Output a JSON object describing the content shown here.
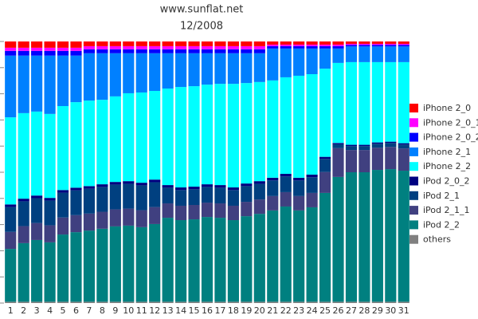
{
  "chart_data": {
    "type": "stacked_bar",
    "title": "www.sunflat.net",
    "subtitle": "12/2008",
    "categories": [
      "1",
      "2",
      "3",
      "4",
      "5",
      "6",
      "7",
      "8",
      "9",
      "10",
      "11",
      "12",
      "13",
      "14",
      "15",
      "16",
      "17",
      "18",
      "19",
      "20",
      "21",
      "22",
      "23",
      "24",
      "25",
      "26",
      "27",
      "28",
      "29",
      "30",
      "31"
    ],
    "ylim": [
      0,
      100
    ],
    "yticks": [
      0,
      10,
      20,
      30,
      40,
      50,
      60,
      70,
      80,
      90,
      100
    ],
    "series": [
      {
        "name": "iPhone 2_0",
        "color": "#ff0000",
        "values": [
          2.4,
          2.4,
          2.4,
          2.4,
          2.4,
          2.4,
          1.8,
          1.8,
          1.8,
          1.8,
          1.8,
          1.8,
          1.8,
          1.8,
          1.8,
          1.8,
          1.8,
          1.8,
          1.8,
          1.8,
          1.2,
          1.2,
          1.2,
          1.2,
          1.2,
          1.2,
          0.9,
          0.9,
          0.9,
          0.9,
          0.9
        ]
      },
      {
        "name": "iPhone 2_0_1",
        "color": "#ff00ff",
        "values": [
          1.2,
          1.2,
          1.2,
          1.2,
          1.2,
          1.2,
          1.2,
          1.2,
          1.2,
          1.2,
          1.2,
          1.2,
          1.2,
          1.2,
          1.2,
          1.2,
          1.2,
          1.2,
          1.2,
          1.2,
          0.6,
          0.6,
          0.6,
          0.6,
          0.6,
          0.6,
          0.4,
          0.4,
          0.4,
          0.4,
          0.4
        ]
      },
      {
        "name": "iPhone 2_0_2",
        "color": "#0000ff",
        "values": [
          1.8,
          1.8,
          1.8,
          1.8,
          1.8,
          1.8,
          1.5,
          1.5,
          1.5,
          1.5,
          1.5,
          1.5,
          1.5,
          1.5,
          1.5,
          1.5,
          1.5,
          1.5,
          1.5,
          1.5,
          0.9,
          0.9,
          0.9,
          0.9,
          0.9,
          0.9,
          0.6,
          0.6,
          0.6,
          0.6,
          0.6
        ]
      },
      {
        "name": "iPhone 2_1",
        "color": "#0080ff",
        "values": [
          23.6,
          22.0,
          21.4,
          22.3,
          19.3,
          17.8,
          18.1,
          17.8,
          16.5,
          15.3,
          15.0,
          14.4,
          13.5,
          12.9,
          12.6,
          12.0,
          11.7,
          11.7,
          11.4,
          11.0,
          12.2,
          11.0,
          10.4,
          9.8,
          7.7,
          5.5,
          6.0,
          6.0,
          6.0,
          6.0,
          6.0
        ]
      },
      {
        "name": "iPhone 2_2",
        "color": "#00ffff",
        "values": [
          33.3,
          32.7,
          32.1,
          32.1,
          32.1,
          32.7,
          32.7,
          32.3,
          32.7,
          33.6,
          34.5,
          33.9,
          36.9,
          38.4,
          38.4,
          38.1,
          38.7,
          39.6,
          38.4,
          37.9,
          37.2,
          36.9,
          39.0,
          38.4,
          33.7,
          30.6,
          31.6,
          31.6,
          30.7,
          30.4,
          31.0
        ]
      },
      {
        "name": "iPod 2_0_2",
        "color": "#000080",
        "values": [
          1.0,
          1.0,
          1.0,
          1.0,
          1.0,
          1.0,
          1.0,
          1.0,
          1.0,
          1.0,
          1.0,
          1.0,
          1.0,
          1.0,
          1.0,
          1.0,
          1.0,
          1.0,
          1.0,
          1.0,
          1.0,
          1.0,
          1.0,
          1.0,
          0.8,
          0.5,
          0.5,
          0.5,
          0.5,
          0.5,
          0.5
        ]
      },
      {
        "name": "iPod 2_1",
        "color": "#004080",
        "values": [
          9.5,
          9.5,
          9.5,
          9.5,
          9.5,
          9.5,
          9.5,
          9.5,
          9.5,
          9.5,
          9.5,
          9.5,
          6.0,
          6.0,
          6.0,
          6.0,
          6.0,
          6.0,
          6.0,
          6.0,
          6.0,
          6.0,
          6.0,
          6.0,
          5.0,
          1.5,
          1.5,
          1.5,
          1.5,
          1.5,
          1.5
        ]
      },
      {
        "name": "iPod 2_1_1",
        "color": "#404080",
        "values": [
          6.5,
          6.5,
          6.5,
          6.5,
          6.5,
          6.5,
          6.5,
          6.5,
          6.5,
          6.5,
          6.5,
          6.5,
          5.5,
          5.5,
          5.5,
          5.5,
          5.5,
          5.5,
          5.5,
          5.5,
          5.5,
          5.5,
          5.5,
          5.5,
          8.0,
          11.0,
          8.5,
          8.5,
          8.5,
          8.5,
          8.5
        ]
      },
      {
        "name": "iPod 2_2",
        "color": "#008080",
        "values": [
          20.2,
          22.4,
          23.6,
          22.7,
          25.7,
          26.6,
          27.2,
          27.9,
          28.8,
          29.1,
          28.5,
          29.7,
          32.1,
          31.2,
          31.5,
          32.4,
          32.1,
          31.2,
          32.7,
          33.6,
          34.9,
          36.4,
          34.9,
          36.1,
          41.6,
          47.7,
          49.5,
          49.5,
          50.4,
          50.7,
          50.1
        ]
      },
      {
        "name": "others",
        "color": "#808080",
        "values": [
          0.5,
          0.5,
          0.5,
          0.5,
          0.5,
          0.5,
          0.5,
          0.5,
          0.5,
          0.5,
          0.5,
          0.5,
          0.5,
          0.5,
          0.5,
          0.5,
          0.5,
          0.5,
          0.5,
          0.5,
          0.5,
          0.5,
          0.5,
          0.5,
          0.5,
          0.5,
          0.5,
          0.5,
          0.5,
          0.5,
          0.5
        ]
      }
    ]
  }
}
